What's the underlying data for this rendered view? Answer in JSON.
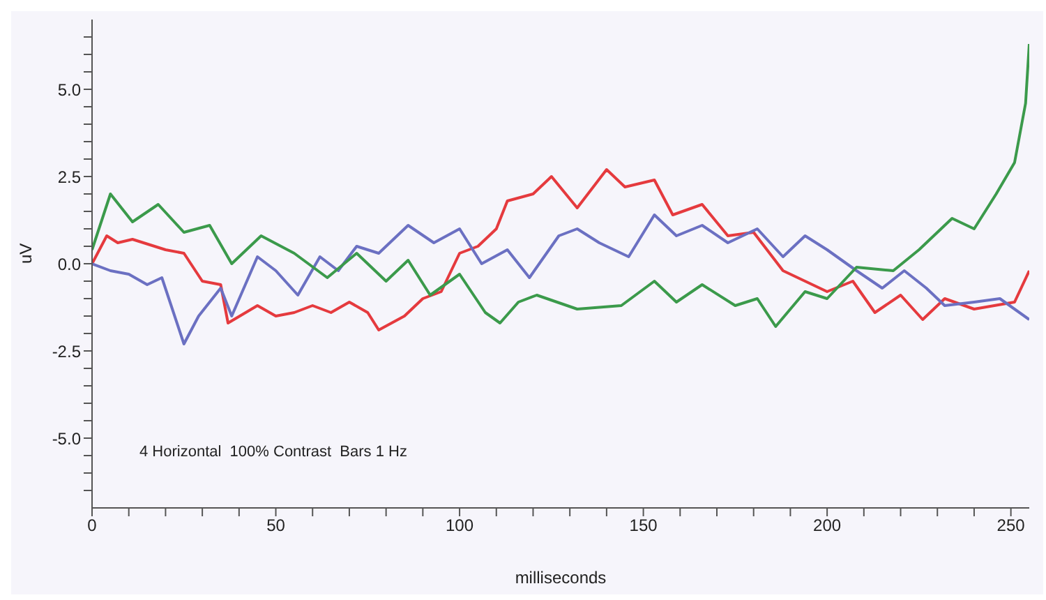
{
  "chart_data": {
    "type": "line",
    "xlabel": "milliseconds",
    "ylabel": "uV",
    "annotations": [
      "4 Horizontal  100% Contrast  Bars 1 Hz"
    ],
    "xlim": [
      0,
      255
    ],
    "xticks": [
      0,
      {
        "value": 10,
        "label": null
      },
      {
        "value": 20,
        "label": null
      },
      {
        "value": 30,
        "label": null
      },
      {
        "value": 40,
        "label": null
      },
      50,
      {
        "value": 60,
        "label": null
      },
      {
        "value": 70,
        "label": null
      },
      {
        "value": 80,
        "label": null
      },
      {
        "value": 90,
        "label": null
      },
      100,
      {
        "value": 110,
        "label": null
      },
      {
        "value": 120,
        "label": null
      },
      {
        "value": 130,
        "label": null
      },
      {
        "value": 140,
        "label": null
      },
      150,
      {
        "value": 160,
        "label": null
      },
      {
        "value": 170,
        "label": null
      },
      {
        "value": 180,
        "label": null
      },
      {
        "value": 190,
        "label": null
      },
      200,
      {
        "value": 210,
        "label": null
      },
      {
        "value": 220,
        "label": null
      },
      {
        "value": 230,
        "label": null
      },
      {
        "value": 240,
        "label": null
      },
      250
    ],
    "ylim": [
      -7,
      7
    ],
    "yticks": [
      {
        "value": -6.5,
        "label": null
      },
      {
        "value": -6,
        "label": null
      },
      {
        "value": -5.5,
        "label": null
      },
      {
        "value": -5,
        "label": "-5.0"
      },
      {
        "value": -4.5,
        "label": null
      },
      {
        "value": -4,
        "label": null
      },
      {
        "value": -3.5,
        "label": null
      },
      {
        "value": -3,
        "label": null
      },
      {
        "value": -2.5,
        "label": "-2.5"
      },
      {
        "value": -2,
        "label": null
      },
      {
        "value": -1.5,
        "label": null
      },
      {
        "value": -1,
        "label": null
      },
      {
        "value": -0.5,
        "label": null
      },
      {
        "value": 0,
        "label": "0.0"
      },
      {
        "value": 0.5,
        "label": null
      },
      {
        "value": 1,
        "label": null
      },
      {
        "value": 1.5,
        "label": null
      },
      {
        "value": 2,
        "label": null
      },
      {
        "value": 2.5,
        "label": "2.5"
      },
      {
        "value": 3,
        "label": null
      },
      {
        "value": 3.5,
        "label": null
      },
      {
        "value": 4,
        "label": null
      },
      {
        "value": 4.5,
        "label": null
      },
      {
        "value": 5,
        "label": "5.0"
      },
      {
        "value": 5.5,
        "label": null
      },
      {
        "value": 6,
        "label": null
      },
      {
        "value": 6.5,
        "label": null
      }
    ],
    "marker": "none",
    "line_style": "solid",
    "series": [
      {
        "color": "#e53a3e",
        "x": [
          0,
          4,
          7,
          11,
          14,
          20,
          25,
          30,
          35,
          37,
          45,
          50,
          55,
          60,
          65,
          70,
          75,
          78,
          85,
          90,
          95,
          100,
          105,
          110,
          113,
          120,
          125,
          132,
          140,
          145,
          153,
          158,
          166,
          173,
          180,
          188,
          194,
          200,
          207,
          213,
          220,
          226,
          232,
          240,
          251,
          255
        ],
        "values": [
          0,
          0.8,
          0.6,
          0.7,
          0.6,
          0.4,
          0.3,
          -0.5,
          -0.6,
          -1.7,
          -1.2,
          -1.5,
          -1.4,
          -1.2,
          -1.4,
          -1.1,
          -1.4,
          -1.9,
          -1.5,
          -1,
          -0.8,
          0.3,
          0.5,
          1,
          1.8,
          2,
          2.5,
          1.6,
          2.7,
          2.2,
          2.4,
          1.4,
          1.7,
          0.8,
          0.9,
          -0.2,
          -0.5,
          -0.8,
          -0.5,
          -1.4,
          -0.9,
          -1.6,
          -1,
          -1.3,
          -1.1,
          -0.2
        ]
      },
      {
        "color": "#6b70c2",
        "x": [
          0,
          5,
          10,
          15,
          19,
          25,
          29,
          35,
          38,
          45,
          50,
          56,
          62,
          67,
          72,
          78,
          86,
          93,
          100,
          106,
          113,
          119,
          127,
          132,
          138,
          146,
          153,
          159,
          166,
          173,
          181,
          188,
          194,
          200,
          208,
          215,
          221,
          227,
          232,
          240,
          247,
          255
        ],
        "values": [
          0,
          -0.2,
          -0.3,
          -0.6,
          -0.4,
          -2.3,
          -1.5,
          -0.7,
          -1.5,
          0.2,
          -0.2,
          -0.9,
          0.2,
          -0.2,
          0.5,
          0.3,
          1.1,
          0.6,
          1,
          0,
          0.4,
          -0.4,
          0.8,
          1,
          0.6,
          0.2,
          1.4,
          0.8,
          1.1,
          0.6,
          1,
          0.2,
          0.8,
          0.4,
          -0.2,
          -0.7,
          -0.2,
          -0.7,
          -1.2,
          -1.1,
          -1,
          -1.6
        ]
      },
      {
        "color": "#3b9a4b",
        "x": [
          0,
          5,
          11,
          18,
          25,
          32,
          38,
          46,
          55,
          64,
          72,
          80,
          86,
          92,
          100,
          107,
          111,
          116,
          121,
          132,
          144,
          153,
          159,
          166,
          175,
          181,
          186,
          194,
          200,
          208,
          218,
          225,
          234,
          240,
          246,
          251,
          254,
          255
        ],
        "values": [
          0.4,
          2,
          1.2,
          1.7,
          0.9,
          1.1,
          0,
          0.8,
          0.3,
          -0.4,
          0.3,
          -0.5,
          0.1,
          -0.9,
          -0.3,
          -1.4,
          -1.7,
          -1.1,
          -0.9,
          -1.3,
          -1.2,
          -0.5,
          -1.1,
          -0.6,
          -1.2,
          -1,
          -1.8,
          -0.8,
          -1,
          -0.1,
          -0.2,
          0.4,
          1.3,
          1,
          2,
          2.9,
          4.6,
          6.3
        ]
      }
    ]
  }
}
